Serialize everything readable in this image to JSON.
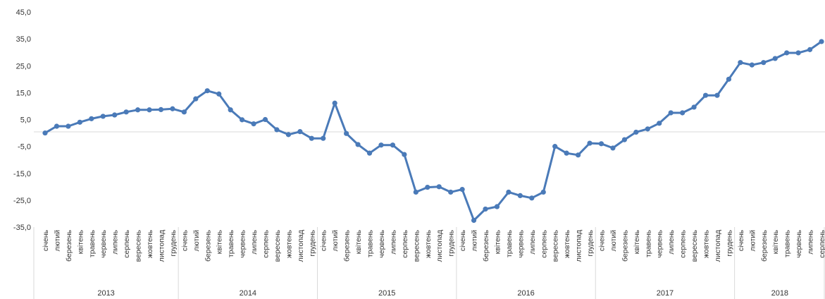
{
  "chart_data": {
    "type": "line",
    "title": "",
    "xlabel": "",
    "ylabel": "",
    "ylim": [
      -35,
      45
    ],
    "yticks": [
      "45,0",
      "35,0",
      "25,0",
      "15,0",
      "5,0",
      "-5,0",
      "-15,0",
      "-25,0",
      "-35,0"
    ],
    "months": [
      "січень",
      "лютий",
      "березень",
      "квітень",
      "травень",
      "червень",
      "липень",
      "серпень",
      "вересень",
      "жовтень",
      "листопад",
      "грудень"
    ],
    "years": [
      "2013",
      "2014",
      "2015",
      "2016",
      "2017",
      "2018"
    ],
    "series_color": "#4a7ab8",
    "grid": false,
    "series": [
      {
        "values": [
          0.0,
          2.5,
          2.5,
          4.0,
          5.3,
          6.2,
          6.7,
          7.8,
          8.6,
          8.6,
          8.7,
          9.0,
          7.8,
          12.7,
          15.7,
          14.5,
          8.6,
          4.9,
          3.4,
          5.0,
          1.2,
          -0.6,
          0.5,
          -2.0,
          -2.0,
          11.1,
          -0.2,
          -4.3,
          -7.5,
          -4.5,
          -4.5,
          -8.0,
          -22.0,
          -20.2,
          -20.0,
          -22.0,
          -21.0,
          -32.5,
          -28.3,
          -27.4,
          -22.0,
          -23.3,
          -24.2,
          -22.0,
          -5.0,
          -7.5,
          -8.2,
          -3.8,
          -4.0,
          -5.6,
          -2.5,
          0.3,
          1.5,
          3.6,
          7.5,
          7.5,
          9.6,
          14.0,
          14.0,
          20.0,
          26.2,
          25.3,
          26.2,
          27.7,
          29.8,
          29.8,
          31.0,
          34.0
        ]
      }
    ]
  }
}
